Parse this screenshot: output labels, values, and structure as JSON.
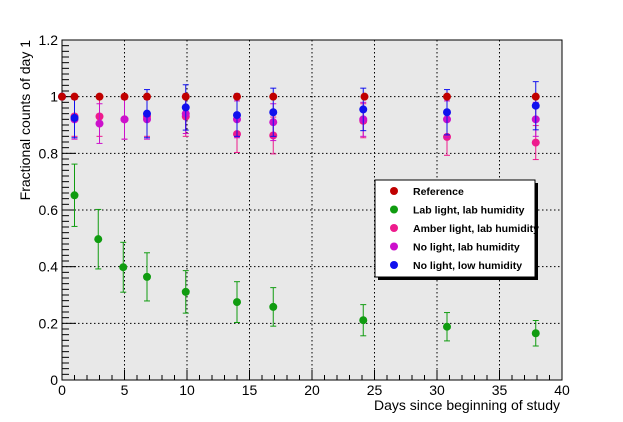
{
  "chart_data": {
    "type": "scatter",
    "xlabel": "Days since beginning of study",
    "ylabel": "Fractional counts of day 1",
    "xlim": [
      0,
      40
    ],
    "ylim": [
      0,
      1.2
    ],
    "x_ticks": [
      "0",
      "5",
      "10",
      "15",
      "20",
      "25",
      "30",
      "35",
      "40"
    ],
    "y_ticks": [
      "0",
      "0.2",
      "0.4",
      "0.6",
      "0.8",
      "1",
      "1.2"
    ],
    "grid": true,
    "legend_position": "center-right",
    "series": [
      {
        "name": "Reference",
        "color": "#c00000",
        "points": [
          {
            "x": 0,
            "y": 1.0,
            "err": 0
          },
          {
            "x": 1,
            "y": 1.0,
            "err": 0
          },
          {
            "x": 3,
            "y": 1.0,
            "err": 0
          },
          {
            "x": 5,
            "y": 1.0,
            "err": 0
          },
          {
            "x": 6.8,
            "y": 1.0,
            "err": 0
          },
          {
            "x": 9.9,
            "y": 1.0,
            "err": 0
          },
          {
            "x": 14,
            "y": 1.0,
            "err": 0
          },
          {
            "x": 16.9,
            "y": 1.0,
            "err": 0
          },
          {
            "x": 24.2,
            "y": 1.0,
            "err": 0
          },
          {
            "x": 30.8,
            "y": 1.0,
            "err": 0
          },
          {
            "x": 37.9,
            "y": 1.0,
            "err": 0
          }
        ]
      },
      {
        "name": "Lab light, lab humidity",
        "color": "#109c10",
        "points": [
          {
            "x": 1,
            "y": 0.652,
            "err": 0.11
          },
          {
            "x": 2.9,
            "y": 0.497,
            "err": 0.105
          },
          {
            "x": 4.9,
            "y": 0.398,
            "err": 0.088
          },
          {
            "x": 6.8,
            "y": 0.364,
            "err": 0.085
          },
          {
            "x": 9.9,
            "y": 0.311,
            "err": 0.075
          },
          {
            "x": 14,
            "y": 0.275,
            "err": 0.072
          },
          {
            "x": 16.9,
            "y": 0.258,
            "err": 0.068
          },
          {
            "x": 24.1,
            "y": 0.211,
            "err": 0.055
          },
          {
            "x": 30.8,
            "y": 0.188,
            "err": 0.05
          },
          {
            "x": 37.9,
            "y": 0.165,
            "err": 0.045
          }
        ]
      },
      {
        "name": "Amber light, lab humidity",
        "color": "#ee1b8d",
        "points": [
          {
            "x": 1,
            "y": 0.93,
            "err": 0.07
          },
          {
            "x": 3,
            "y": 0.93,
            "err": 0.07
          },
          {
            "x": 5,
            "y": 0.92,
            "err": 0.07
          },
          {
            "x": 6.8,
            "y": 0.93,
            "err": 0.07
          },
          {
            "x": 9.9,
            "y": 0.93,
            "err": 0.07
          },
          {
            "x": 14,
            "y": 0.868,
            "err": 0.065
          },
          {
            "x": 16.9,
            "y": 0.863,
            "err": 0.065
          },
          {
            "x": 24.1,
            "y": 0.915,
            "err": 0.06
          },
          {
            "x": 30.8,
            "y": 0.858,
            "err": 0.065
          },
          {
            "x": 37.9,
            "y": 0.838,
            "err": 0.06
          }
        ]
      },
      {
        "name": "No light, lab humidity",
        "color": "#cc10cc",
        "points": [
          {
            "x": 1,
            "y": 0.92,
            "err": 0.07
          },
          {
            "x": 3,
            "y": 0.905,
            "err": 0.07
          },
          {
            "x": 5,
            "y": 0.92,
            "err": 0.07
          },
          {
            "x": 6.8,
            "y": 0.92,
            "err": 0.07
          },
          {
            "x": 9.9,
            "y": 0.94,
            "err": 0.07
          },
          {
            "x": 14,
            "y": 0.92,
            "err": 0.065
          },
          {
            "x": 16.9,
            "y": 0.91,
            "err": 0.065
          },
          {
            "x": 24.1,
            "y": 0.92,
            "err": 0.06
          },
          {
            "x": 30.8,
            "y": 0.92,
            "err": 0.065
          },
          {
            "x": 37.9,
            "y": 0.92,
            "err": 0.06
          }
        ]
      },
      {
        "name": "No light, low humidity",
        "color": "#1010ee",
        "points": [
          {
            "x": 0,
            "y": 1.0,
            "err": 0
          },
          {
            "x": 1,
            "y": 0.925,
            "err": 0.07
          },
          {
            "x": 6.8,
            "y": 0.94,
            "err": 0.085
          },
          {
            "x": 9.9,
            "y": 0.962,
            "err": 0.08
          },
          {
            "x": 14,
            "y": 0.935,
            "err": 0.075
          },
          {
            "x": 16.9,
            "y": 0.945,
            "err": 0.085
          },
          {
            "x": 24.1,
            "y": 0.955,
            "err": 0.075
          },
          {
            "x": 30.8,
            "y": 0.945,
            "err": 0.08
          },
          {
            "x": 37.9,
            "y": 0.968,
            "err": 0.085
          }
        ]
      }
    ]
  }
}
